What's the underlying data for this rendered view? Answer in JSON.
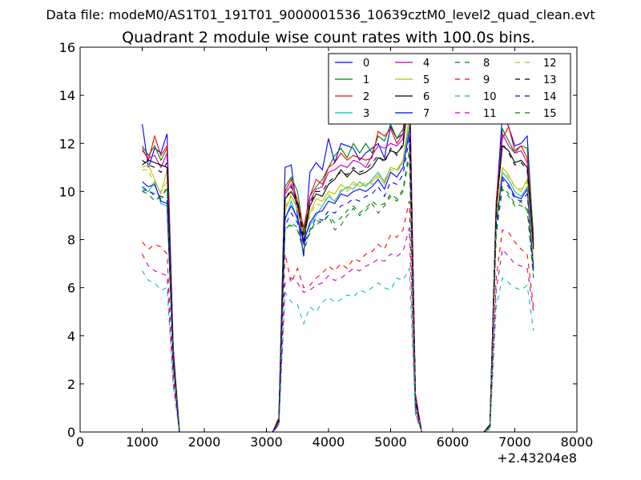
{
  "chart_data": {
    "type": "line",
    "suptitle": "Data file: modeM0/AS1T01_191T01_9000001536_10639cztM0_level2_quad_clean.evt",
    "title": "Quadrant 2 module wise count rates with 100.0s bins.",
    "xlabel": "",
    "ylabel": "",
    "x_offset_text": "+2.43204e8",
    "xlim": [
      0,
      8000
    ],
    "ylim": [
      0,
      16
    ],
    "xticks": [
      0,
      1000,
      2000,
      3000,
      4000,
      5000,
      6000,
      7000,
      8000
    ],
    "yticks": [
      0,
      2,
      4,
      6,
      8,
      10,
      12,
      14,
      16
    ],
    "grid": false,
    "legend_position": "top-right",
    "legend_columns": 4,
    "x": [
      1000,
      1100,
      1200,
      1300,
      1400,
      1500,
      1600,
      1700,
      1800,
      1900,
      2000,
      2100,
      2200,
      2300,
      2400,
      2500,
      2600,
      2700,
      2800,
      2900,
      3000,
      3100,
      3200,
      3300,
      3400,
      3500,
      3600,
      3700,
      3800,
      3900,
      4000,
      4100,
      4200,
      4300,
      4400,
      4500,
      4600,
      4700,
      4800,
      4900,
      5000,
      5100,
      5200,
      5300,
      5400,
      5500,
      5600,
      5700,
      5800,
      5900,
      6000,
      6100,
      6200,
      6300,
      6400,
      6500,
      6600,
      6700,
      6800,
      6900,
      7000,
      7100,
      7200,
      7300
    ],
    "series": [
      {
        "name": "0",
        "color": "#0000ff",
        "dash": "solid",
        "values": [
          12.8,
          11.0,
          11.8,
          11.6,
          12.4,
          3.5,
          0,
          0,
          0,
          0,
          0,
          0,
          0,
          0,
          0,
          0,
          0,
          0,
          0,
          0,
          0,
          0,
          0.5,
          11.0,
          11.1,
          9.0,
          7.3,
          10.8,
          11.2,
          10.9,
          12.2,
          11.2,
          12.0,
          11.9,
          11.8,
          11.3,
          11.6,
          11.8,
          12.0,
          11.4,
          12.7,
          12.2,
          12.4,
          13.9,
          1.5,
          0,
          0,
          0,
          0,
          0,
          0,
          0,
          0,
          0,
          0,
          0,
          0.3,
          9.5,
          13.2,
          12.7,
          11.9,
          12.0,
          12.3,
          8.0
        ]
      },
      {
        "name": "1",
        "color": "#008000",
        "dash": "solid",
        "values": [
          11.9,
          11.5,
          11.9,
          11.3,
          11.8,
          3.2,
          0,
          0,
          0,
          0,
          0,
          0,
          0,
          0,
          0,
          0,
          0,
          0,
          0,
          0,
          0,
          0,
          0.5,
          10.2,
          10.6,
          10.0,
          8.3,
          9.8,
          10.2,
          10.5,
          11.0,
          11.5,
          11.8,
          11.4,
          12.0,
          11.6,
          12.0,
          11.6,
          12.3,
          12.1,
          12.8,
          12.2,
          12.6,
          14.6,
          1.5,
          0,
          0,
          0,
          0,
          0,
          0,
          0,
          0,
          0,
          0,
          0,
          0.3,
          9.5,
          12.6,
          12.1,
          11.6,
          11.9,
          11.8,
          8.2
        ]
      },
      {
        "name": "2",
        "color": "#ff0000",
        "dash": "solid",
        "values": [
          11.8,
          11.3,
          12.3,
          11.5,
          11.9,
          3.4,
          0,
          0,
          0,
          0,
          0,
          0,
          0,
          0,
          0,
          0,
          0,
          0,
          0,
          0,
          0,
          0,
          0.6,
          10.0,
          10.5,
          9.6,
          8.5,
          9.8,
          10.5,
          10.3,
          11.0,
          11.2,
          11.6,
          11.3,
          11.5,
          11.4,
          11.3,
          11.4,
          12.5,
          12.3,
          12.6,
          12.0,
          12.4,
          15.2,
          1.6,
          0,
          0,
          0,
          0,
          0,
          0,
          0,
          0,
          0,
          0,
          0,
          0.3,
          9.6,
          12.2,
          12.7,
          11.7,
          11.9,
          11.4,
          7.8
        ]
      },
      {
        "name": "3",
        "color": "#00bfbf",
        "dash": "solid",
        "values": [
          10.1,
          10.0,
          10.4,
          9.5,
          9.4,
          2.8,
          0,
          0,
          0,
          0,
          0,
          0,
          0,
          0,
          0,
          0,
          0,
          0,
          0,
          0,
          0,
          0,
          0.4,
          8.8,
          9.6,
          8.8,
          8.0,
          8.6,
          9.0,
          9.4,
          9.8,
          9.6,
          10.0,
          10.2,
          10.1,
          10.4,
          10.2,
          10.5,
          10.8,
          10.4,
          11.0,
          10.9,
          11.2,
          12.8,
          1.2,
          0,
          0,
          0,
          0,
          0,
          0,
          0,
          0,
          0,
          0,
          0,
          0.2,
          8.8,
          10.8,
          10.5,
          10.0,
          9.8,
          10.2,
          7.0
        ]
      },
      {
        "name": "4",
        "color": "#bf00bf",
        "dash": "solid",
        "values": [
          11.7,
          11.4,
          11.5,
          11.0,
          11.6,
          3.3,
          0,
          0,
          0,
          0,
          0,
          0,
          0,
          0,
          0,
          0,
          0,
          0,
          0,
          0,
          0,
          0,
          0.5,
          9.9,
          10.3,
          9.4,
          7.8,
          9.6,
          10.1,
          10.2,
          10.8,
          10.9,
          11.1,
          11.0,
          11.3,
          11.2,
          11.0,
          11.5,
          11.9,
          11.8,
          12.0,
          11.9,
          12.2,
          15.4,
          1.5,
          0,
          0,
          0,
          0,
          0,
          0,
          0,
          0,
          0,
          0,
          0,
          0.3,
          9.3,
          12.4,
          11.9,
          11.6,
          11.7,
          11.2,
          7.9
        ]
      },
      {
        "name": "5",
        "color": "#bfbf00",
        "dash": "solid",
        "values": [
          11.0,
          11.1,
          10.5,
          9.9,
          10.9,
          3.1,
          0,
          0,
          0,
          0,
          0,
          0,
          0,
          0,
          0,
          0,
          0,
          0,
          0,
          0,
          0,
          0,
          0.4,
          9.2,
          9.8,
          9.3,
          8.2,
          9.1,
          9.7,
          9.6,
          10.0,
          9.9,
          10.3,
          10.1,
          10.4,
          10.2,
          10.3,
          10.4,
          10.7,
          10.3,
          11.0,
          10.9,
          11.3,
          13.2,
          1.3,
          0,
          0,
          0,
          0,
          0,
          0,
          0,
          0,
          0,
          0,
          0,
          0.2,
          8.9,
          11.0,
          10.7,
          10.2,
          10.0,
          10.5,
          7.1
        ]
      },
      {
        "name": "6",
        "color": "#000000",
        "dash": "solid",
        "values": [
          11.1,
          11.3,
          11.2,
          11.1,
          11.0,
          3.1,
          0,
          0,
          0,
          0,
          0,
          0,
          0,
          0,
          0,
          0,
          0,
          0,
          0,
          0,
          0,
          0,
          0.5,
          9.7,
          10.0,
          9.5,
          8.0,
          9.4,
          9.9,
          9.8,
          10.3,
          10.5,
          10.9,
          10.6,
          10.9,
          10.7,
          10.8,
          11.0,
          11.4,
          11.3,
          11.7,
          11.6,
          11.9,
          14.2,
          1.4,
          0,
          0,
          0,
          0,
          0,
          0,
          0,
          0,
          0,
          0,
          0,
          0.3,
          9.3,
          11.9,
          11.7,
          11.2,
          11.3,
          11.0,
          7.7
        ]
      },
      {
        "name": "7",
        "color": "#0000ff",
        "dash": "solid",
        "values": [
          10.4,
          10.2,
          10.3,
          9.6,
          9.5,
          2.9,
          0,
          0,
          0,
          0,
          0,
          0,
          0,
          0,
          0,
          0,
          0,
          0,
          0,
          0,
          0,
          0,
          0.4,
          8.9,
          9.4,
          8.9,
          7.9,
          8.7,
          9.1,
          9.2,
          9.6,
          9.5,
          9.9,
          9.8,
          10.0,
          10.1,
          10.0,
          10.2,
          10.5,
          10.1,
          10.8,
          10.6,
          11.0,
          12.5,
          1.2,
          0,
          0,
          0,
          0,
          0,
          0,
          0,
          0,
          0,
          0,
          0,
          0.2,
          8.7,
          10.6,
          10.3,
          9.8,
          9.7,
          10.1,
          6.8
        ]
      },
      {
        "name": "8",
        "color": "#008000",
        "dash": "dashed",
        "values": [
          10.0,
          10.1,
          9.8,
          9.7,
          10.2,
          2.9,
          0,
          0,
          0,
          0,
          0,
          0,
          0,
          0,
          0,
          0,
          0,
          0,
          0,
          0,
          0,
          0,
          0.4,
          8.5,
          8.6,
          8.4,
          7.5,
          8.3,
          8.8,
          8.7,
          9.0,
          8.4,
          8.6,
          9.0,
          9.3,
          9.0,
          9.2,
          9.5,
          9.1,
          9.4,
          9.8,
          9.6,
          10.0,
          11.5,
          1.1,
          0,
          0,
          0,
          0,
          0,
          0,
          0,
          0,
          0,
          0,
          0,
          0.2,
          8.2,
          10.1,
          9.8,
          9.4,
          9.6,
          9.2,
          6.4
        ]
      },
      {
        "name": "9",
        "color": "#ff0000",
        "dash": "dashed",
        "values": [
          7.9,
          7.6,
          7.8,
          7.7,
          7.4,
          2.3,
          0,
          0,
          0,
          0,
          0,
          0,
          0,
          0,
          0,
          0,
          0,
          0,
          0,
          0,
          0,
          0,
          0.3,
          7.4,
          6.2,
          6.8,
          6.0,
          6.1,
          6.4,
          6.6,
          6.9,
          6.7,
          7.0,
          6.8,
          7.2,
          7.1,
          7.4,
          7.5,
          7.8,
          7.6,
          8.2,
          8.1,
          8.4,
          9.6,
          0.9,
          0,
          0,
          0,
          0,
          0,
          0,
          0,
          0,
          0,
          0,
          0,
          0.2,
          6.4,
          8.4,
          8.3,
          7.9,
          7.6,
          7.4,
          5.2
        ]
      },
      {
        "name": "10",
        "color": "#00bfbf",
        "dash": "dashed",
        "values": [
          6.7,
          6.3,
          6.2,
          5.9,
          6.0,
          1.9,
          0,
          0,
          0,
          0,
          0,
          0,
          0,
          0,
          0,
          0,
          0,
          0,
          0,
          0,
          0,
          0,
          0.3,
          5.8,
          5.4,
          5.3,
          4.5,
          5.2,
          5.0,
          5.4,
          5.6,
          5.4,
          5.5,
          5.7,
          5.6,
          5.9,
          5.8,
          6.0,
          6.2,
          6.0,
          5.9,
          6.4,
          6.3,
          6.8,
          0.7,
          0,
          0,
          0,
          0,
          0,
          0,
          0,
          0,
          0,
          0,
          0,
          0.1,
          5.2,
          6.4,
          6.2,
          6.0,
          5.9,
          6.1,
          4.2
        ]
      },
      {
        "name": "11",
        "color": "#bf00bf",
        "dash": "dashed",
        "values": [
          7.4,
          6.9,
          6.7,
          6.6,
          6.5,
          2.0,
          0,
          0,
          0,
          0,
          0,
          0,
          0,
          0,
          0,
          0,
          0,
          0,
          0,
          0,
          0,
          0,
          0.3,
          6.2,
          6.4,
          6.2,
          5.8,
          5.9,
          6.1,
          6.2,
          6.5,
          6.3,
          6.4,
          6.6,
          6.8,
          6.7,
          6.9,
          7.0,
          7.2,
          7.1,
          7.4,
          7.3,
          7.5,
          8.5,
          0.8,
          0,
          0,
          0,
          0,
          0,
          0,
          0,
          0,
          0,
          0,
          0,
          0.2,
          5.9,
          7.6,
          7.3,
          7.0,
          6.9,
          6.8,
          5.0
        ]
      },
      {
        "name": "12",
        "color": "#bfbf00",
        "dash": "dashed",
        "values": [
          10.9,
          10.9,
          10.2,
          10.0,
          10.4,
          3.0,
          0,
          0,
          0,
          0,
          0,
          0,
          0,
          0,
          0,
          0,
          0,
          0,
          0,
          0,
          0,
          0,
          0.4,
          9.3,
          9.9,
          9.2,
          8.1,
          9.0,
          9.5,
          9.4,
          9.9,
          9.6,
          10.1,
          10.0,
          10.3,
          10.2,
          10.4,
          10.3,
          10.6,
          10.5,
          10.9,
          10.8,
          11.2,
          13.0,
          1.3,
          0,
          0,
          0,
          0,
          0,
          0,
          0,
          0,
          0,
          0,
          0,
          0.2,
          8.8,
          10.9,
          10.6,
          10.2,
          10.1,
          10.4,
          7.0
        ]
      },
      {
        "name": "13",
        "color": "#000000",
        "dash": "dashed",
        "values": [
          11.3,
          11.1,
          11.0,
          10.8,
          11.2,
          3.1,
          0,
          0,
          0,
          0,
          0,
          0,
          0,
          0,
          0,
          0,
          0,
          0,
          0,
          0,
          0,
          0,
          0.5,
          9.6,
          10.2,
          9.6,
          8.2,
          9.5,
          10.0,
          10.0,
          10.4,
          10.6,
          10.8,
          10.7,
          11.0,
          10.8,
          10.9,
          11.2,
          11.5,
          11.2,
          11.8,
          11.5,
          12.0,
          14.0,
          1.4,
          0,
          0,
          0,
          0,
          0,
          0,
          0,
          0,
          0,
          0,
          0,
          0.3,
          9.2,
          12.0,
          11.6,
          11.1,
          11.2,
          10.9,
          7.6
        ]
      },
      {
        "name": "14",
        "color": "#0000ff",
        "dash": "dashed",
        "values": [
          10.2,
          10.0,
          9.9,
          9.8,
          9.7,
          2.8,
          0,
          0,
          0,
          0,
          0,
          0,
          0,
          0,
          0,
          0,
          0,
          0,
          0,
          0,
          0,
          0,
          0.4,
          8.6,
          9.1,
          8.7,
          7.8,
          8.4,
          8.9,
          8.8,
          9.2,
          9.1,
          9.4,
          9.5,
          9.7,
          9.6,
          9.8,
          9.9,
          10.2,
          9.8,
          10.4,
          10.3,
          10.7,
          12.2,
          1.2,
          0,
          0,
          0,
          0,
          0,
          0,
          0,
          0,
          0,
          0,
          0,
          0.2,
          8.6,
          10.5,
          10.2,
          9.7,
          9.6,
          9.9,
          6.7
        ]
      },
      {
        "name": "15",
        "color": "#008000",
        "dash": "dashed",
        "values": [
          10.0,
          9.9,
          9.6,
          9.8,
          10.1,
          2.9,
          0,
          0,
          0,
          0,
          0,
          0,
          0,
          0,
          0,
          0,
          0,
          0,
          0,
          0,
          0,
          0,
          0.4,
          8.4,
          8.7,
          8.5,
          7.6,
          8.4,
          8.6,
          8.8,
          9.0,
          8.7,
          8.9,
          9.2,
          9.4,
          9.1,
          9.3,
          9.6,
          9.4,
          9.5,
          9.9,
          9.7,
          10.1,
          11.7,
          1.1,
          0,
          0,
          0,
          0,
          0,
          0,
          0,
          0,
          0,
          0,
          0,
          0.2,
          8.3,
          10.2,
          9.9,
          9.5,
          9.4,
          9.3,
          6.5
        ]
      }
    ]
  }
}
